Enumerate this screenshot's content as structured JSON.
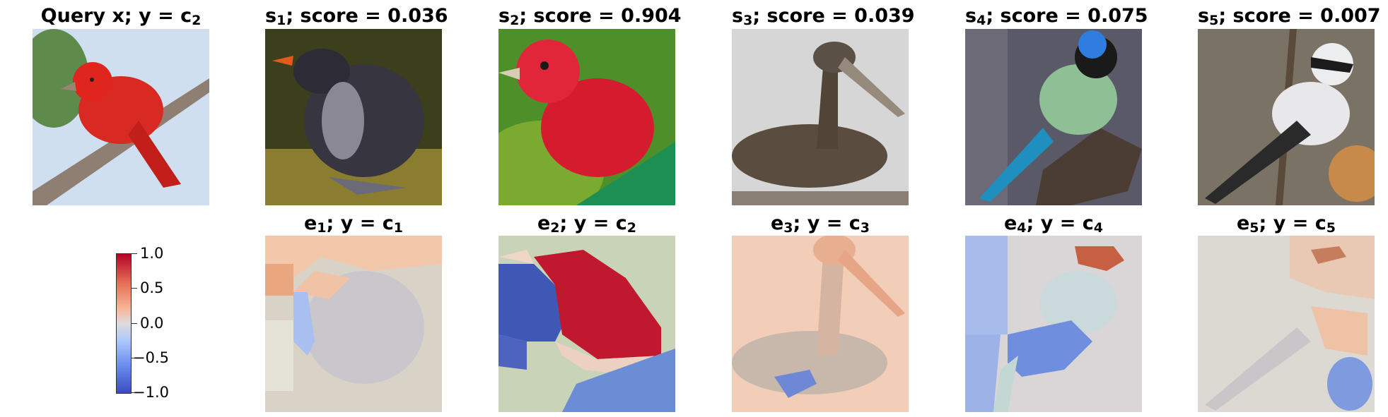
{
  "titles": {
    "query": {
      "main": "Query x; y = c",
      "sub": "2"
    },
    "s1": {
      "pre": "s",
      "sub": "1",
      "post": "; score = 0.036"
    },
    "s2": {
      "pre": "s",
      "sub": "2",
      "post": "; score = 0.904"
    },
    "s3": {
      "pre": "s",
      "sub": "3",
      "post": "; score = 0.039"
    },
    "s4": {
      "pre": "s",
      "sub": "4",
      "post": "; score = 0.075"
    },
    "s5": {
      "pre": "s",
      "sub": "5",
      "post": "; score = 0.007"
    },
    "e1": {
      "pre": "e",
      "sub": "1",
      "mid": "; y = c",
      "sub2": "1"
    },
    "e2": {
      "pre": "e",
      "sub": "2",
      "mid": "; y = c",
      "sub2": "2"
    },
    "e3": {
      "pre": "e",
      "sub": "3",
      "mid": "; y = c",
      "sub2": "3"
    },
    "e4": {
      "pre": "e",
      "sub": "4",
      "mid": "; y = c",
      "sub2": "4"
    },
    "e5": {
      "pre": "e",
      "sub": "5",
      "mid": "; y = c",
      "sub2": "5"
    }
  },
  "colorbar": {
    "ticks": [
      "1.0",
      "0.5",
      "0.0",
      "−0.5",
      "−1.0"
    ],
    "range": [
      -1.0,
      1.0
    ],
    "colormap": "coolwarm"
  },
  "colors": {
    "positive": "#b40426",
    "neutral": "#dddcdc",
    "negative": "#3b4cc0"
  }
}
